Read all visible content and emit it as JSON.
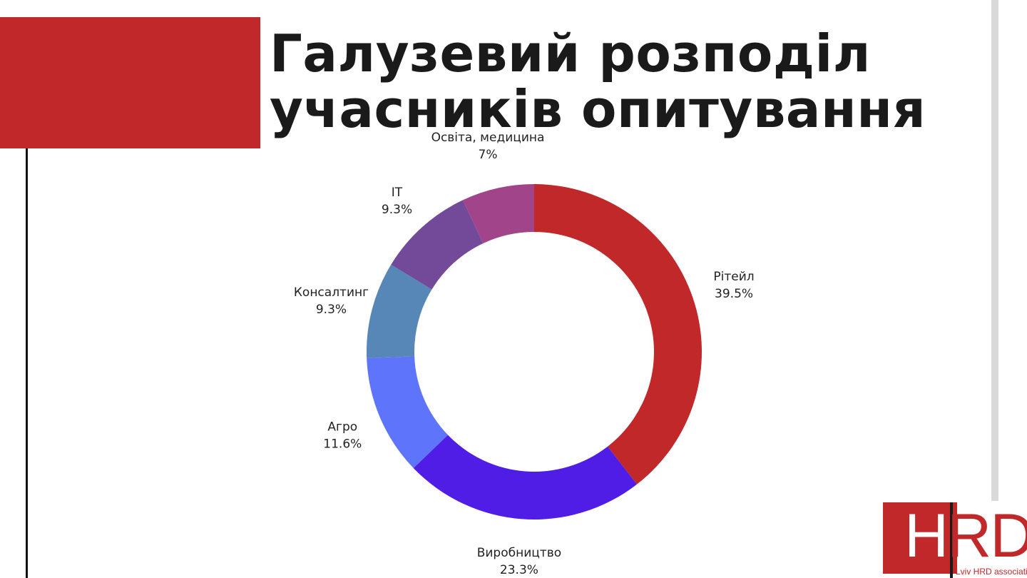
{
  "slide": {
    "title_line1": "Галузевий розподіл",
    "title_line2": "учасників опитування"
  },
  "colors": {
    "accent": "#c1282a",
    "text": "#1a1a1a",
    "side_rule": "#d9d9d9"
  },
  "logo": {
    "letters": "HRD",
    "caption": "Lviv HRD association"
  },
  "chart_data": {
    "type": "pie",
    "variant": "donut",
    "start": "top",
    "direction": "clockwise",
    "slices": [
      {
        "label": "Рітейл",
        "value": 39.5,
        "value_label": "39.5%",
        "color": "#c1282a"
      },
      {
        "label": "Виробництво",
        "value": 23.3,
        "value_label": "23.3%",
        "color": "#4f1de5"
      },
      {
        "label": "Агро",
        "value": 11.6,
        "value_label": "11.6%",
        "color": "#5e75fb"
      },
      {
        "label": "Консалтинг",
        "value": 9.3,
        "value_label": "9.3%",
        "color": "#5687b7"
      },
      {
        "label": "IT",
        "value": 9.3,
        "value_label": "9.3%",
        "color": "#734a9a"
      },
      {
        "label": "Освіта, медицина",
        "value": 7,
        "value_label": "7%",
        "color": "#a1448a"
      }
    ]
  }
}
